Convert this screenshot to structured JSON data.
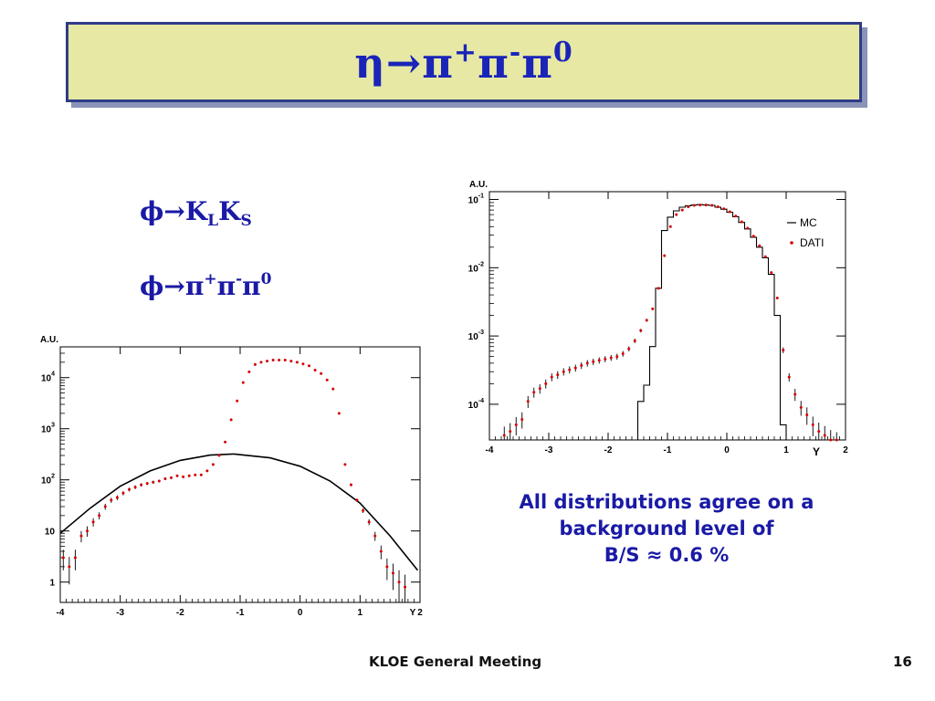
{
  "slide": {
    "title_parts": [
      "η→π",
      "+",
      "π",
      "-",
      "π",
      "0"
    ],
    "decay_kk": [
      "ϕ→K",
      "L",
      "K",
      "S"
    ],
    "decay_3pi": [
      "ϕ→π",
      "+",
      "π",
      "-",
      "π",
      "0"
    ],
    "note_lines": [
      "All distributions agree on a",
      "background level of",
      "B/S ≈ 0.6 %"
    ],
    "footer_text": "KLOE General Meeting",
    "page_number": "16"
  },
  "chart_data": [
    {
      "type": "scatter",
      "ylabel": "A.U.",
      "xlabel": "Y",
      "xlim": [
        -4,
        2
      ],
      "ylog": true,
      "ylim": [
        0.4,
        40000
      ],
      "x_ticks": [
        "-4",
        "-3",
        "-2",
        "-1",
        "0",
        "1",
        "2"
      ],
      "y_ticks": [
        {
          "v": 1,
          "base": "1",
          "exp": ""
        },
        {
          "v": 10,
          "base": "10",
          "exp": ""
        },
        {
          "v": 100,
          "base": "10",
          "exp": "2"
        },
        {
          "v": 1000,
          "base": "10",
          "exp": "3"
        },
        {
          "v": 10000,
          "base": "10",
          "exp": "4"
        }
      ],
      "colors": {
        "data": "#d40000",
        "curve": "#000000"
      },
      "curve_fit": {
        "type": "gaussian-like",
        "x": [
          -4.0,
          -3.5,
          -3.0,
          -2.5,
          -2.0,
          -1.5,
          -1.1,
          -0.5,
          0.0,
          0.5,
          1.0,
          1.5,
          1.96
        ],
        "y": [
          9,
          28,
          75,
          150,
          240,
          305,
          320,
          270,
          185,
          95,
          35,
          8,
          1.7
        ]
      },
      "series": [
        {
          "x": [
            -3.95,
            -3.85,
            -3.75,
            -3.65,
            -3.55,
            -3.45,
            -3.35,
            -3.25,
            -3.15,
            -3.05,
            -2.95,
            -2.85,
            -2.75,
            -2.65,
            -2.55,
            -2.45,
            -2.35,
            -2.25,
            -2.15,
            -2.05,
            -1.95,
            -1.85,
            -1.75,
            -1.65,
            -1.55,
            -1.45,
            -1.35,
            -1.25,
            -1.15,
            -1.05,
            -0.95,
            -0.85,
            -0.75,
            -0.65,
            -0.55,
            -0.45,
            -0.35,
            -0.25,
            -0.15,
            -0.05,
            0.05,
            0.15,
            0.25,
            0.35,
            0.45,
            0.55,
            0.65,
            0.75,
            0.85,
            0.95,
            1.05,
            1.15,
            1.25,
            1.35,
            1.45,
            1.55,
            1.65,
            1.75
          ],
          "y": [
            3,
            2,
            3,
            8,
            10,
            15,
            20,
            30,
            40,
            45,
            55,
            65,
            72,
            80,
            85,
            90,
            95,
            105,
            110,
            120,
            115,
            120,
            125,
            125,
            150,
            200,
            300,
            550,
            1500,
            3500,
            8000,
            13000,
            18000,
            20000,
            21000,
            22000,
            22000,
            22000,
            21000,
            20000,
            18500,
            17000,
            14000,
            12000,
            9000,
            6000,
            2000,
            200,
            80,
            40,
            25,
            15,
            8,
            4,
            2,
            1.5,
            1,
            0.8
          ],
          "err": [
            1.3,
            1.1,
            1.3,
            2.0,
            2.3,
            2.8,
            3.2,
            4.0,
            4.5,
            4.8,
            5.0,
            5.5,
            6.0,
            6.0,
            6.0,
            6.0,
            6.0,
            6.0,
            6.5,
            6.5,
            6.5,
            6.5,
            6.5,
            6.5,
            7,
            8,
            10,
            12,
            20,
            35,
            50,
            60,
            70,
            75,
            75,
            75,
            75,
            75,
            75,
            75,
            70,
            70,
            60,
            55,
            50,
            40,
            25,
            8,
            5,
            3,
            2.5,
            2.0,
            1.6,
            1.2,
            0.9,
            0.8,
            0.7,
            0.6
          ]
        }
      ]
    },
    {
      "type": "line",
      "ylabel": "A.U.",
      "xlabel": "Y",
      "xlim": [
        -4,
        2
      ],
      "ylog": true,
      "ylim": [
        3e-05,
        0.13
      ],
      "x_ticks": [
        "-4",
        "-3",
        "-2",
        "-1",
        "0",
        "1",
        "2"
      ],
      "y_ticks": [
        {
          "v": 0.0001,
          "base": "10",
          "exp": "-4"
        },
        {
          "v": 0.001,
          "base": "10",
          "exp": "-3"
        },
        {
          "v": 0.01,
          "base": "10",
          "exp": "-2"
        },
        {
          "v": 0.1,
          "base": "10",
          "exp": "-1"
        }
      ],
      "colors": {
        "mc": "#000000",
        "dati": "#d40000"
      },
      "legend": [
        {
          "label": "MC",
          "marker": "line"
        },
        {
          "label": "DATI",
          "marker": "dot"
        }
      ],
      "mc_hist": {
        "edges": [
          -4.0,
          -1.5,
          -1.4,
          -1.3,
          -1.2,
          -1.1,
          -1.0,
          -0.9,
          -0.8,
          -0.7,
          -0.6,
          -0.5,
          -0.4,
          -0.3,
          -0.2,
          -0.1,
          0.0,
          0.1,
          0.2,
          0.3,
          0.4,
          0.5,
          0.6,
          0.7,
          0.8,
          0.9,
          1.0,
          2.0
        ],
        "values": [
          3e-05,
          0.00011,
          0.00019,
          0.0007,
          0.005,
          0.035,
          0.055,
          0.068,
          0.077,
          0.081,
          0.083,
          0.084,
          0.083,
          0.082,
          0.077,
          0.072,
          0.065,
          0.056,
          0.046,
          0.037,
          0.028,
          0.02,
          0.014,
          0.008,
          0.002,
          5e-05,
          3e-05
        ]
      },
      "dati": {
        "x": [
          -3.75,
          -3.65,
          -3.55,
          -3.45,
          -3.35,
          -3.25,
          -3.15,
          -3.05,
          -2.95,
          -2.85,
          -2.75,
          -2.65,
          -2.55,
          -2.45,
          -2.35,
          -2.25,
          -2.15,
          -2.05,
          -1.95,
          -1.85,
          -1.75,
          -1.65,
          -1.55,
          -1.45,
          -1.35,
          -1.25,
          -1.15,
          -1.05,
          -0.95,
          -0.85,
          -0.75,
          -0.65,
          -0.55,
          -0.45,
          -0.35,
          -0.25,
          -0.15,
          -0.05,
          0.05,
          0.15,
          0.25,
          0.35,
          0.45,
          0.55,
          0.65,
          0.75,
          0.85,
          0.95,
          1.05,
          1.15,
          1.25,
          1.35,
          1.45,
          1.55,
          1.65,
          1.75,
          1.85
        ],
        "y": [
          3.5e-05,
          4e-05,
          5e-05,
          6e-05,
          0.00011,
          0.00015,
          0.00017,
          0.0002,
          0.00025,
          0.00027,
          0.0003,
          0.00032,
          0.00034,
          0.00037,
          0.0004,
          0.00042,
          0.00044,
          0.00046,
          0.00048,
          0.0005,
          0.00055,
          0.00065,
          0.00085,
          0.0012,
          0.0017,
          0.0025,
          0.005,
          0.015,
          0.04,
          0.06,
          0.07,
          0.078,
          0.082,
          0.083,
          0.083,
          0.082,
          0.078,
          0.073,
          0.066,
          0.057,
          0.047,
          0.038,
          0.029,
          0.021,
          0.0145,
          0.0085,
          0.0036,
          0.00062,
          0.00025,
          0.00014,
          9e-05,
          7e-05,
          5e-05,
          4e-05,
          3.5e-05,
          3e-05,
          2.8e-05
        ],
        "err": [
          1.2e-05,
          1.3e-05,
          1.5e-05,
          1.6e-05,
          2.2e-05,
          2.5e-05,
          2.7e-05,
          3e-05,
          3.3e-05,
          3.5e-05,
          3.7e-05,
          3.8e-05,
          4e-05,
          4.2e-05,
          4.4e-05,
          4.5e-05,
          4.6e-05,
          4.7e-05,
          4.8e-05,
          5e-05,
          5.2e-05,
          5.5e-05,
          6.2e-05,
          7e-05,
          8e-05,
          0.0001,
          0.00015,
          0.0003,
          0.0005,
          0.0006,
          0.0007,
          0.0007,
          0.0007,
          0.0007,
          0.0007,
          0.0007,
          0.0007,
          0.0007,
          0.0006,
          0.0006,
          0.0005,
          0.0005,
          0.0004,
          0.0003,
          0.00025,
          0.0002,
          0.00012,
          6e-05,
          3.5e-05,
          2.8e-05,
          2.2e-05,
          2e-05,
          1.6e-05,
          1.4e-05,
          1.3e-05,
          1.2e-05,
          1.1e-05
        ]
      }
    }
  ]
}
